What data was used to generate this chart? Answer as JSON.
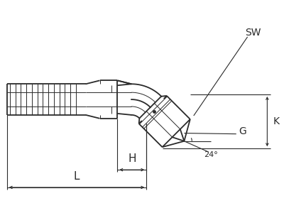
{
  "bg_color": "#ffffff",
  "line_color": "#2a2a2a",
  "fig_width": 4.0,
  "fig_height": 3.0,
  "dpi": 100,
  "labels": {
    "SW": "SW",
    "K": "K",
    "G": "G",
    "H": "H",
    "L": "L",
    "angle": "24°"
  },
  "lw_main": 1.3,
  "lw_thin": 0.7,
  "lw_dim": 0.8
}
